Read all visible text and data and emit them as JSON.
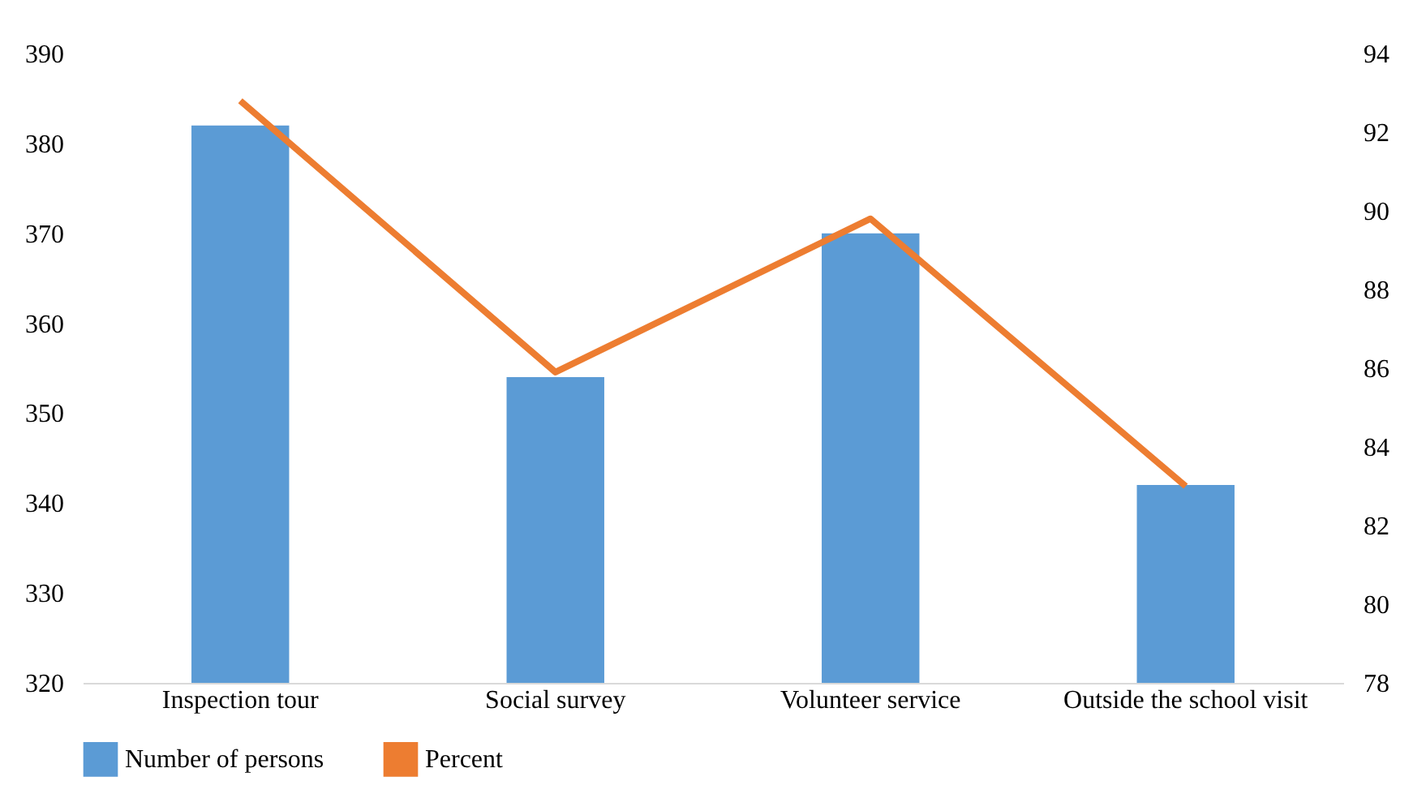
{
  "chart_data": {
    "type": "bar",
    "categories": [
      "Inspection tour",
      "Social survey",
      "Volunteer service",
      "Outside the school visit"
    ],
    "series": [
      {
        "name": "Number of persons",
        "type": "bar",
        "color": "#5b9bd5",
        "values": [
          382,
          354,
          370,
          342
        ]
      },
      {
        "name": "Percent",
        "type": "line",
        "axis": "y2",
        "color": "#ed7d31",
        "values": [
          92.8,
          85.9,
          89.8,
          83.0
        ]
      }
    ],
    "ylim": [
      320,
      390
    ],
    "yticks": [
      320,
      330,
      340,
      350,
      360,
      370,
      380,
      390
    ],
    "y2lim": [
      78,
      94
    ],
    "y2ticks": [
      78,
      80,
      82,
      84,
      86,
      88,
      90,
      92,
      94
    ],
    "grid": false,
    "legend": "bottom"
  }
}
